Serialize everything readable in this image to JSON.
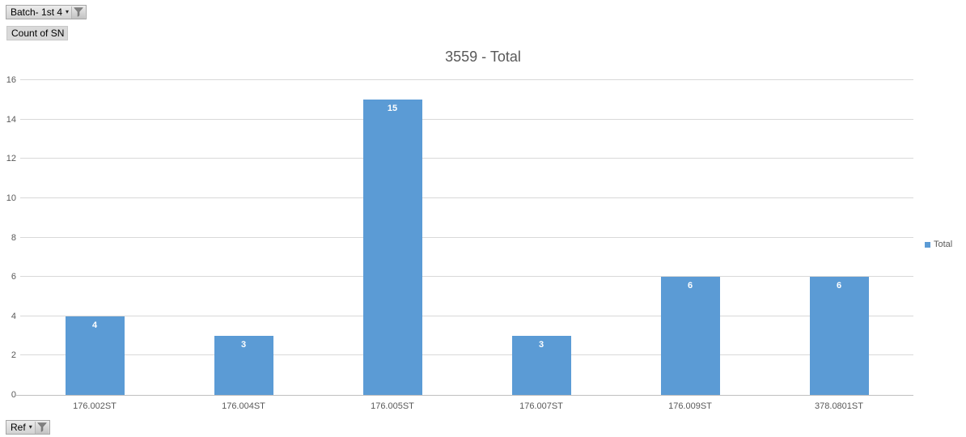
{
  "filters": {
    "batch": {
      "label": "Batch- 1st 4"
    },
    "value_field": {
      "label": "Count of SN"
    },
    "ref": {
      "label": "Ref"
    }
  },
  "chart_data": {
    "type": "bar",
    "title": "3559 - Total",
    "categories": [
      "176.002ST",
      "176.004ST",
      "176.005ST",
      "176.007ST",
      "176.009ST",
      "378.0801ST"
    ],
    "series": [
      {
        "name": "Total",
        "values": [
          4,
          3,
          15,
          3,
          6,
          6
        ]
      }
    ],
    "xlabel": "",
    "ylabel": "",
    "ylim": [
      0,
      16
    ],
    "ytick_step": 2,
    "grid": true,
    "legend_position": "right",
    "bar_color": "#5b9bd5",
    "data_label_color": "#ffffff",
    "data_labels_shown": true
  },
  "legend": {
    "items": [
      {
        "label": "Total",
        "color": "#5b9bd5"
      }
    ]
  },
  "colors": {
    "gridline": "#d9d9d9",
    "axis_line": "#bfbfbf",
    "axis_text": "#595959",
    "title_text": "#595959"
  }
}
